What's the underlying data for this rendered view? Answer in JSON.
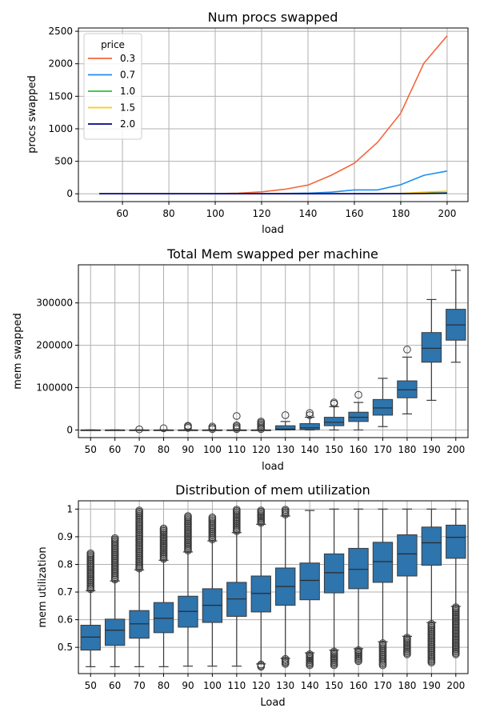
{
  "colors": {
    "box": "#2e74ad",
    "median": "#2b2b2b",
    "whisker": "#3a3a3a",
    "grid": "#b0b0b0",
    "spine": "#000000"
  },
  "chart_data": [
    {
      "type": "line",
      "title": "Num procs swapped",
      "xlabel": "load",
      "ylabel": "procs swapped",
      "xlim": [
        41,
        209
      ],
      "ylim": [
        -120,
        2550
      ],
      "xticks": [
        60,
        80,
        100,
        120,
        140,
        160,
        180,
        200
      ],
      "yticks": [
        0,
        500,
        1000,
        1500,
        2000,
        2500
      ],
      "grid": true,
      "legend": {
        "title": "price",
        "placement": "top-left"
      },
      "x": [
        50,
        60,
        70,
        80,
        90,
        100,
        110,
        120,
        130,
        140,
        150,
        160,
        170,
        180,
        190,
        200
      ],
      "series": [
        {
          "name": "0.3",
          "color": "#f4663c",
          "values": [
            0,
            0,
            0,
            0,
            0,
            2,
            10,
            30,
            70,
            135,
            285,
            470,
            790,
            1240,
            2010,
            2430
          ]
        },
        {
          "name": "0.7",
          "color": "#1f8ef0",
          "values": [
            0,
            0,
            0,
            0,
            0,
            0,
            0,
            2,
            5,
            10,
            25,
            60,
            60,
            140,
            285,
            350
          ]
        },
        {
          "name": "1.0",
          "color": "#2ec235",
          "values": [
            0,
            0,
            0,
            0,
            0,
            0,
            0,
            0,
            0,
            0,
            0,
            2,
            3,
            5,
            10,
            15
          ]
        },
        {
          "name": "1.5",
          "color": "#ffcc00",
          "values": [
            0,
            0,
            0,
            0,
            0,
            0,
            0,
            0,
            0,
            0,
            0,
            1,
            2,
            5,
            25,
            40
          ]
        },
        {
          "name": "2.0",
          "color": "#000080",
          "values": [
            0,
            0,
            0,
            0,
            0,
            0,
            0,
            0,
            0,
            0,
            0,
            0,
            0,
            2,
            5,
            10
          ]
        }
      ]
    },
    {
      "type": "box",
      "title": "Total Mem swapped per machine",
      "xlabel": "load",
      "ylabel": "mem swapped",
      "ylim": [
        -18000,
        390000
      ],
      "yticks": [
        0,
        100000,
        200000,
        300000
      ],
      "grid": true,
      "categories": [
        "50",
        "60",
        "70",
        "80",
        "90",
        "100",
        "110",
        "120",
        "130",
        "140",
        "150",
        "160",
        "170",
        "180",
        "190",
        "200"
      ],
      "boxes": [
        {
          "min": 0,
          "q1": 0,
          "median": 0,
          "q3": 0,
          "max": 0,
          "outliers": []
        },
        {
          "min": 0,
          "q1": 0,
          "median": 0,
          "q3": 0,
          "max": 0,
          "outliers": []
        },
        {
          "min": 0,
          "q1": 0,
          "median": 0,
          "q3": 0,
          "max": 0,
          "outliers": [
            1500
          ]
        },
        {
          "min": 0,
          "q1": 0,
          "median": 0,
          "q3": 0,
          "max": 0,
          "outliers": [
            4000
          ]
        },
        {
          "min": 0,
          "q1": 0,
          "median": 0,
          "q3": 0,
          "max": 0,
          "outliers": [
            5000,
            8000,
            10000
          ]
        },
        {
          "min": 0,
          "q1": 0,
          "median": 0,
          "q3": 0,
          "max": 0,
          "outliers": [
            2000,
            5000,
            8000
          ]
        },
        {
          "min": 0,
          "q1": 0,
          "median": 0,
          "q3": 0,
          "max": 0,
          "outliers": [
            2000,
            5000,
            8000,
            11000,
            33000
          ]
        },
        {
          "min": 0,
          "q1": 0,
          "median": 0,
          "q3": 0,
          "max": 0,
          "outliers": [
            2000,
            5000,
            8000,
            11000,
            14000,
            17000,
            20000
          ]
        },
        {
          "min": 0,
          "q1": 0,
          "median": 2000,
          "q3": 10000,
          "max": 20000,
          "outliers": [
            35000
          ]
        },
        {
          "min": 0,
          "q1": 1000,
          "median": 5000,
          "q3": 15000,
          "max": 30000,
          "outliers": [
            35000,
            40000
          ]
        },
        {
          "min": 0,
          "q1": 10000,
          "median": 18000,
          "q3": 30000,
          "max": 55000,
          "outliers": [
            62000,
            65000
          ]
        },
        {
          "min": 0,
          "q1": 20000,
          "median": 30000,
          "q3": 42000,
          "max": 65000,
          "outliers": [
            83000
          ]
        },
        {
          "min": 8000,
          "q1": 35000,
          "median": 52000,
          "q3": 72000,
          "max": 122000,
          "outliers": []
        },
        {
          "min": 38000,
          "q1": 76000,
          "median": 95000,
          "q3": 116000,
          "max": 172000,
          "outliers": [
            190000
          ]
        },
        {
          "min": 70000,
          "q1": 160000,
          "median": 193000,
          "q3": 230000,
          "max": 308000,
          "outliers": []
        },
        {
          "min": 160000,
          "q1": 212000,
          "median": 248000,
          "q3": 285000,
          "max": 377000,
          "outliers": []
        }
      ]
    },
    {
      "type": "box",
      "title": "Distribution of mem utilization",
      "xlabel": "Load",
      "ylabel": "mem utilization",
      "ylim": [
        0.405,
        1.03
      ],
      "yticks": [
        0.5,
        0.6,
        0.7,
        0.8,
        0.9,
        1.0
      ],
      "grid": true,
      "categories": [
        "50",
        "60",
        "70",
        "80",
        "90",
        "100",
        "110",
        "120",
        "130",
        "140",
        "150",
        "160",
        "170",
        "180",
        "190",
        "200"
      ],
      "boxes": [
        {
          "min": 0.43,
          "q1": 0.49,
          "median": 0.537,
          "q3": 0.58,
          "max": 0.705,
          "outliers_range": [
            0.71,
            0.84
          ]
        },
        {
          "min": 0.43,
          "q1": 0.507,
          "median": 0.562,
          "q3": 0.602,
          "max": 0.74,
          "outliers_range": [
            0.745,
            0.895
          ]
        },
        {
          "min": 0.43,
          "q1": 0.533,
          "median": 0.585,
          "q3": 0.633,
          "max": 0.78,
          "outliers_range": [
            0.785,
            0.995
          ]
        },
        {
          "min": 0.43,
          "q1": 0.553,
          "median": 0.605,
          "q3": 0.662,
          "max": 0.815,
          "outliers_range": [
            0.82,
            0.93
          ]
        },
        {
          "min": 0.432,
          "q1": 0.573,
          "median": 0.63,
          "q3": 0.685,
          "max": 0.845,
          "outliers_range": [
            0.85,
            0.975
          ]
        },
        {
          "min": 0.432,
          "q1": 0.59,
          "median": 0.652,
          "q3": 0.712,
          "max": 0.885,
          "outliers_range": [
            0.89,
            0.97
          ]
        },
        {
          "min": 0.432,
          "q1": 0.612,
          "median": 0.675,
          "q3": 0.735,
          "max": 0.915,
          "outliers_range": [
            0.92,
            0.998
          ]
        },
        {
          "min": 0.44,
          "q1": 0.628,
          "median": 0.695,
          "q3": 0.758,
          "max": 0.945,
          "outliers_range": [
            0.95,
            0.995
          ],
          "low_outliers_range": [
            0.43,
            0.438
          ]
        },
        {
          "min": 0.46,
          "q1": 0.652,
          "median": 0.72,
          "q3": 0.787,
          "max": 0.975,
          "outliers_range": [
            0.98,
            0.998
          ],
          "low_outliers_range": [
            0.44,
            0.458
          ]
        },
        {
          "min": 0.48,
          "q1": 0.672,
          "median": 0.742,
          "q3": 0.805,
          "max": 0.995,
          "outliers_range": [],
          "low_outliers_range": [
            0.435,
            0.475
          ]
        },
        {
          "min": 0.49,
          "q1": 0.697,
          "median": 0.77,
          "q3": 0.838,
          "max": 1.0,
          "outliers_range": [],
          "low_outliers_range": [
            0.435,
            0.485
          ]
        },
        {
          "min": 0.495,
          "q1": 0.712,
          "median": 0.782,
          "q3": 0.858,
          "max": 1.0,
          "outliers_range": [],
          "low_outliers_range": [
            0.45,
            0.49
          ]
        },
        {
          "min": 0.52,
          "q1": 0.735,
          "median": 0.81,
          "q3": 0.88,
          "max": 1.0,
          "outliers_range": [],
          "low_outliers_range": [
            0.435,
            0.515
          ]
        },
        {
          "min": 0.54,
          "q1": 0.758,
          "median": 0.838,
          "q3": 0.907,
          "max": 1.0,
          "outliers_range": [],
          "low_outliers_range": [
            0.475,
            0.535
          ]
        },
        {
          "min": 0.59,
          "q1": 0.797,
          "median": 0.878,
          "q3": 0.935,
          "max": 1.0,
          "outliers_range": [],
          "low_outliers_range": [
            0.445,
            0.585
          ]
        },
        {
          "min": 0.648,
          "q1": 0.822,
          "median": 0.898,
          "q3": 0.942,
          "max": 1.0,
          "outliers_range": [],
          "low_outliers_range": [
            0.475,
            0.645
          ]
        }
      ]
    }
  ]
}
